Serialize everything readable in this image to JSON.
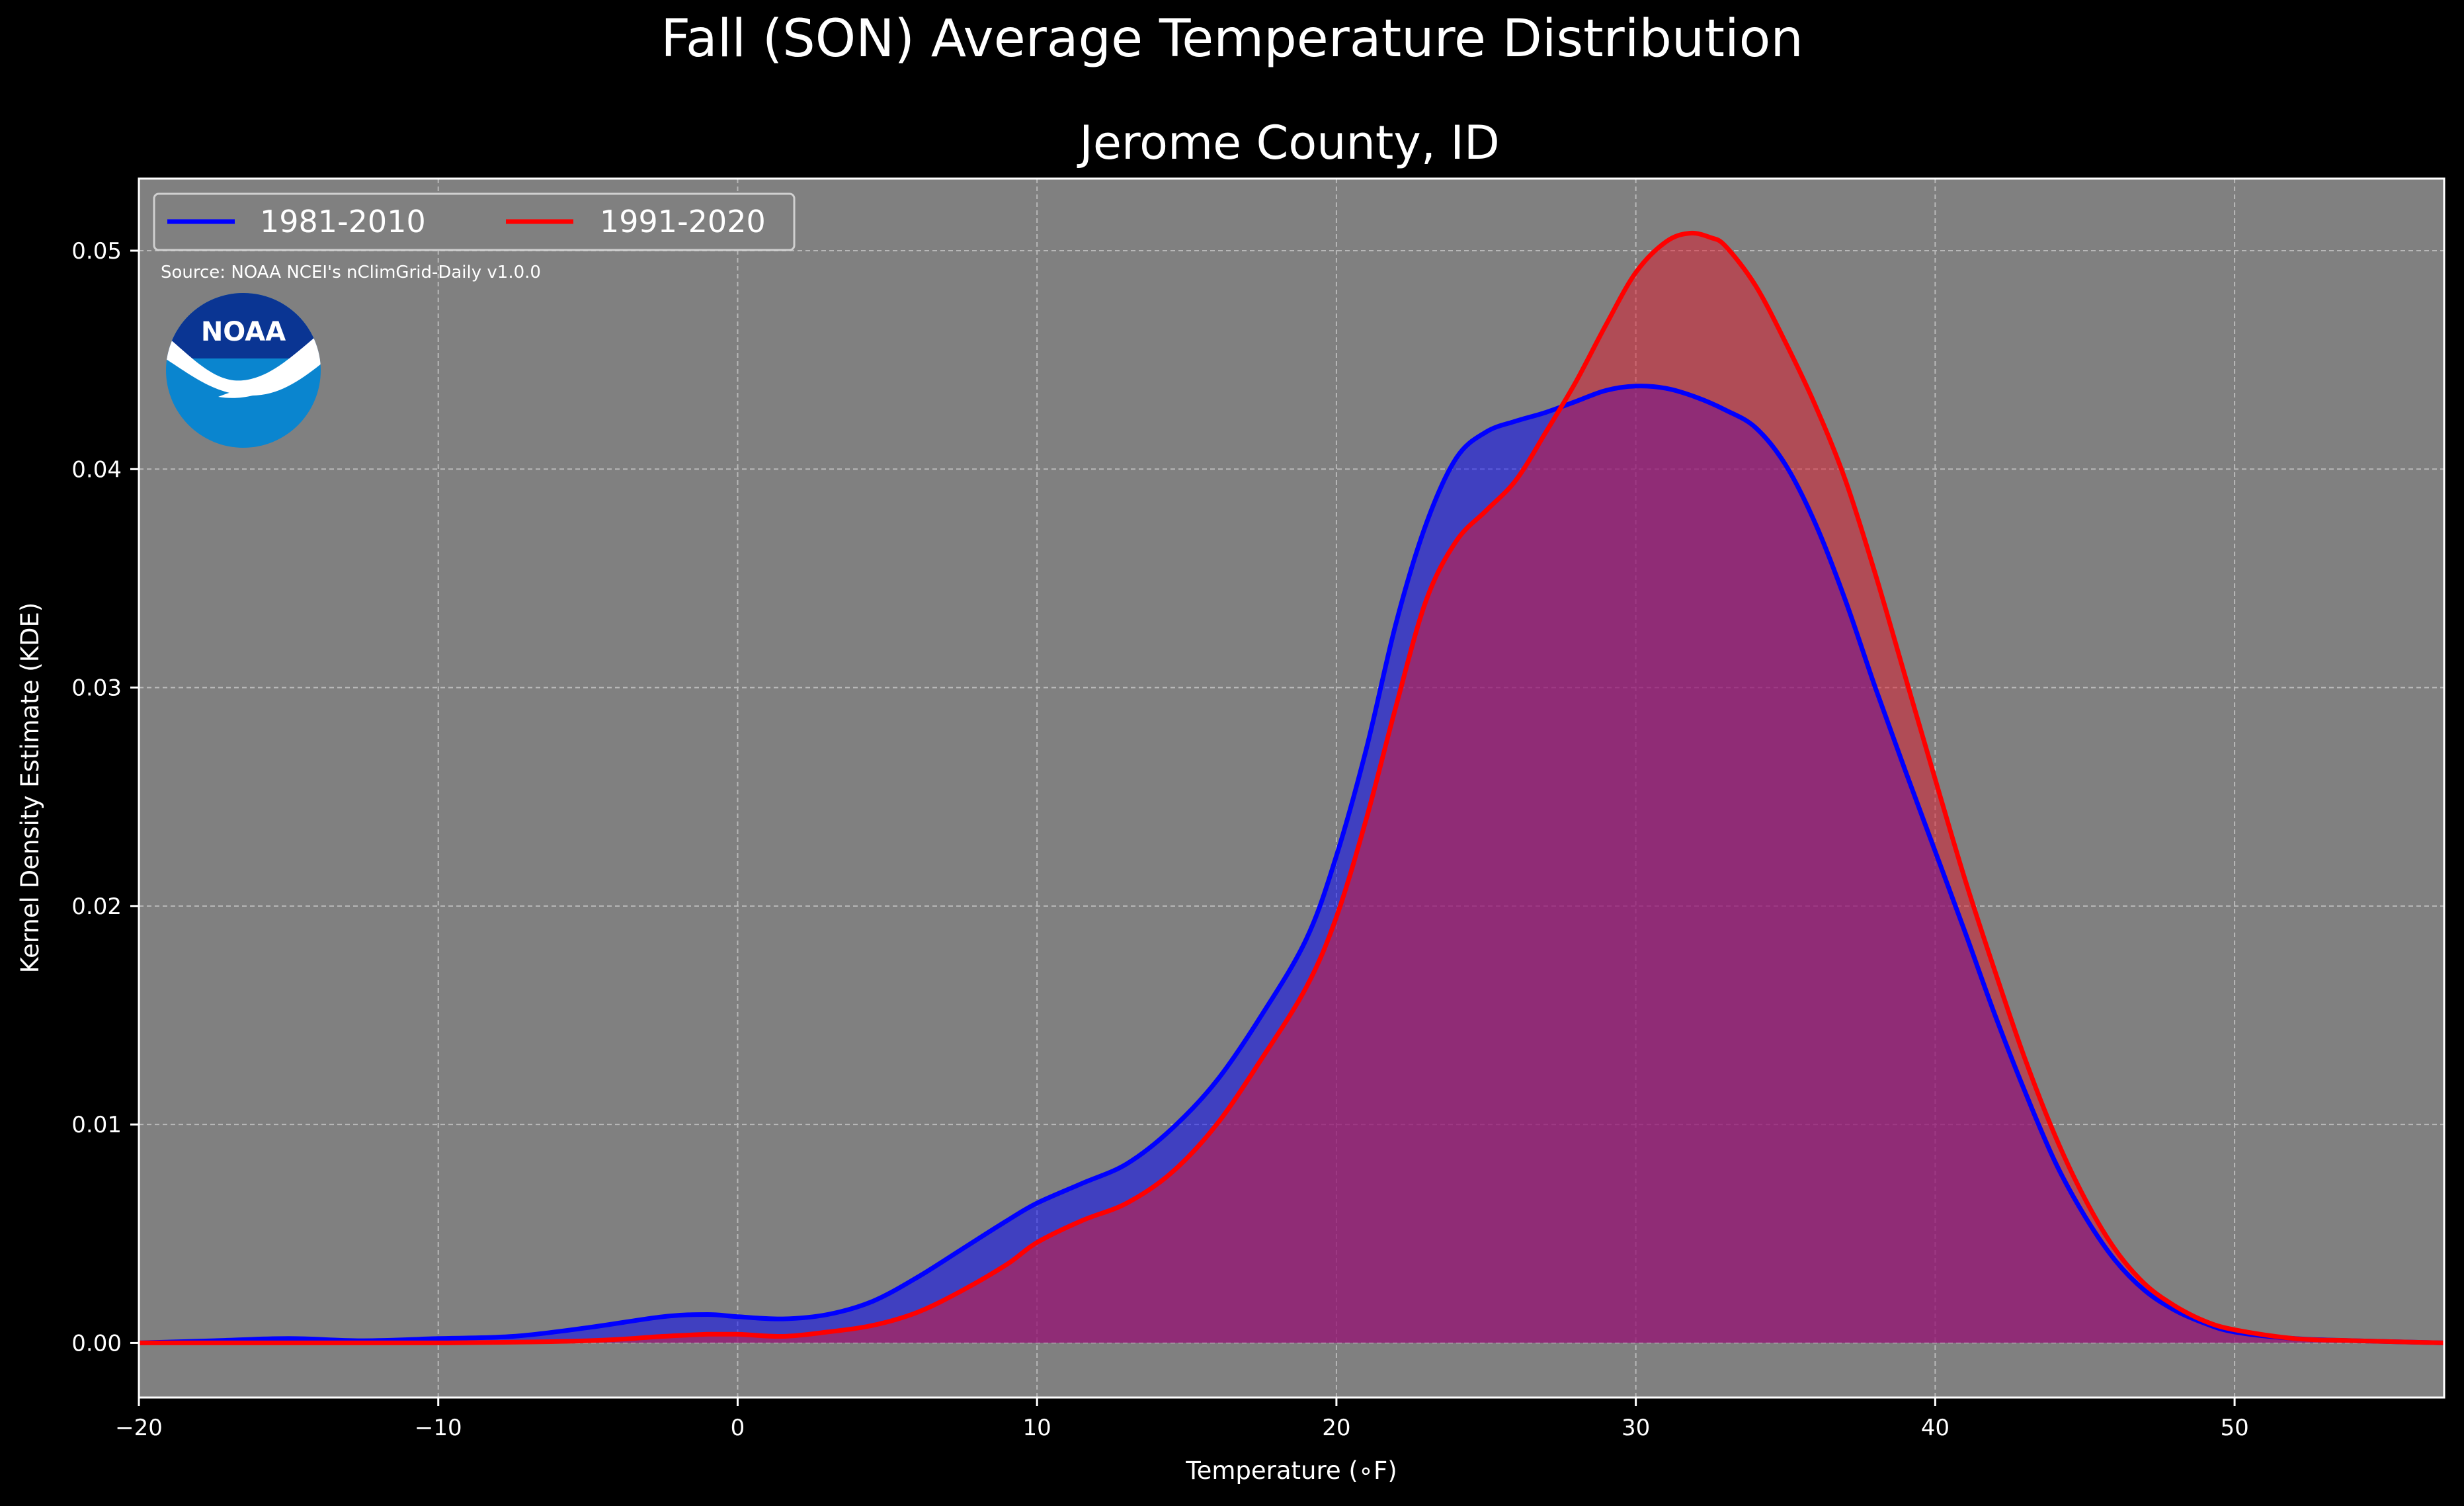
{
  "chart_data": {
    "type": "area",
    "title": "Fall (SON) Average Temperature Distribution",
    "subtitle": "Jerome County, ID",
    "xlabel": "Temperature (∘F)",
    "ylabel": "Kernel Density Estimate (KDE)",
    "source": "Source: NOAA NCEI's nClimGrid-Daily v1.0.0",
    "logo_text": "NOAA",
    "xlim": [
      -20,
      57
    ],
    "ylim": [
      -0.0025,
      0.0533
    ],
    "x_ticks": [
      -20,
      -10,
      0,
      10,
      20,
      30,
      40,
      50
    ],
    "x_tick_labels": [
      "−20",
      "−10",
      "0",
      "10",
      "20",
      "30",
      "40",
      "50"
    ],
    "y_ticks": [
      0.0,
      0.01,
      0.02,
      0.03,
      0.04,
      0.05
    ],
    "y_tick_labels": [
      "0.00",
      "0.01",
      "0.02",
      "0.03",
      "0.04",
      "0.05"
    ],
    "grid": true,
    "legend_position": "top-left",
    "background_color": "#000000",
    "plot_background_color": "#808080",
    "series": [
      {
        "name": "1981-2010",
        "color": "#0000ff",
        "fill": "#0000ff",
        "x": [
          -20,
          -17.5,
          -15,
          -12.5,
          -10,
          -7.5,
          -5,
          -2.5,
          -1,
          0,
          1.5,
          3,
          4.5,
          6,
          7.5,
          9,
          10,
          11.5,
          13,
          14.5,
          16,
          17.5,
          19,
          20,
          21,
          22,
          23,
          24,
          25,
          26,
          27,
          28,
          29,
          30,
          31,
          32,
          33,
          34,
          35,
          36,
          37,
          38,
          39,
          40,
          41,
          42,
          43,
          44,
          45,
          46,
          47,
          48,
          49,
          50,
          52,
          54,
          57
        ],
        "y": [
          0.0,
          0.0001,
          0.0002,
          0.0001,
          0.0002,
          0.0003,
          0.0007,
          0.0012,
          0.0013,
          0.0012,
          0.0011,
          0.0013,
          0.0019,
          0.003,
          0.0043,
          0.0056,
          0.0064,
          0.0073,
          0.0082,
          0.0098,
          0.012,
          0.015,
          0.0185,
          0.0223,
          0.0272,
          0.033,
          0.0375,
          0.0405,
          0.0417,
          0.0422,
          0.0426,
          0.0431,
          0.0436,
          0.0438,
          0.0437,
          0.0433,
          0.0427,
          0.0419,
          0.0402,
          0.0375,
          0.034,
          0.03,
          0.0262,
          0.0225,
          0.0188,
          0.015,
          0.0115,
          0.0083,
          0.0058,
          0.0038,
          0.0024,
          0.0015,
          0.0009,
          0.0005,
          0.0002,
          0.0001,
          0.0
        ]
      },
      {
        "name": "1991-2020",
        "color": "#ff0000",
        "fill": "#e0182c",
        "x": [
          -20,
          -15,
          -10,
          -5,
          -2.5,
          -1,
          0,
          1.5,
          3,
          4.5,
          6,
          7.5,
          9,
          10,
          11.5,
          13,
          14.5,
          16,
          17.5,
          19,
          20,
          21,
          22,
          23,
          24,
          25,
          26,
          27,
          28,
          29,
          30,
          31,
          31.8,
          32.5,
          33,
          34,
          35,
          36,
          37,
          38,
          39,
          40,
          41,
          42,
          43,
          44,
          45,
          46,
          47,
          48,
          49,
          50,
          52,
          54,
          57
        ],
        "y": [
          0.0,
          0.0,
          0.0,
          0.0001,
          0.0003,
          0.0004,
          0.0004,
          0.0003,
          0.0005,
          0.0008,
          0.0014,
          0.0024,
          0.0036,
          0.0046,
          0.0056,
          0.0064,
          0.0078,
          0.01,
          0.013,
          0.0163,
          0.0195,
          0.024,
          0.0292,
          0.034,
          0.0367,
          0.0381,
          0.0395,
          0.0417,
          0.044,
          0.0466,
          0.049,
          0.0504,
          0.0508,
          0.0506,
          0.0502,
          0.0484,
          0.0458,
          0.0429,
          0.0395,
          0.0352,
          0.0305,
          0.0258,
          0.0212,
          0.017,
          0.013,
          0.0095,
          0.0066,
          0.0043,
          0.0027,
          0.0017,
          0.001,
          0.0006,
          0.0002,
          0.0001,
          0.0
        ]
      }
    ]
  }
}
